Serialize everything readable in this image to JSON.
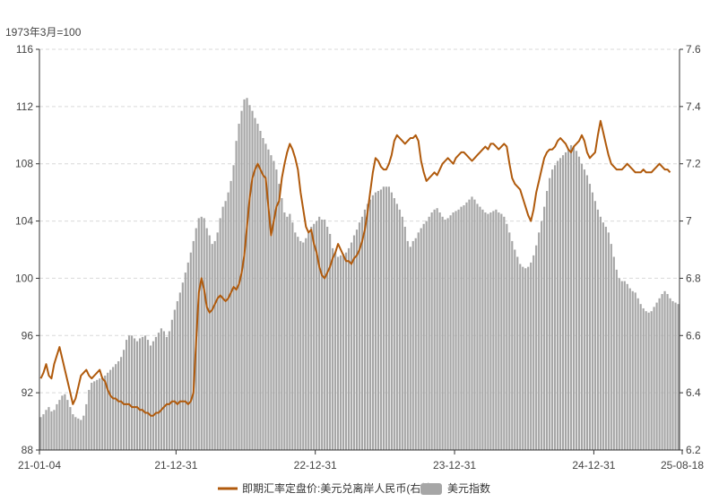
{
  "chart_data": {
    "type": "bar+line",
    "left_axis_unit": "1973年3月=100",
    "left_axis": {
      "min": 88,
      "max": 116,
      "ticks": [
        88,
        92,
        96,
        100,
        104,
        108,
        112,
        116
      ]
    },
    "right_axis": {
      "min": 6.2,
      "max": 7.6,
      "ticks": [
        6.2,
        6.4,
        6.6,
        6.8,
        7,
        7.2,
        7.4,
        7.6
      ]
    },
    "x_tick_labels": [
      "21-01-04",
      "21-12-31",
      "22-12-31",
      "23-12-31",
      "24-12-31",
      "25-08-18"
    ],
    "x_ticks": [
      0,
      51,
      103,
      155,
      207,
      240
    ],
    "grid": true,
    "legend_position": "bottom-center",
    "series": [
      {
        "name": "即期汇率定盘价:美元兑离岸人民币(右轴)",
        "type": "line",
        "axis": "right",
        "color": "#b05a0c",
        "values": [
          6.45,
          6.47,
          6.5,
          6.46,
          6.45,
          6.5,
          6.53,
          6.56,
          6.52,
          6.48,
          6.44,
          6.4,
          6.36,
          6.38,
          6.42,
          6.46,
          6.47,
          6.48,
          6.46,
          6.45,
          6.46,
          6.47,
          6.48,
          6.45,
          6.44,
          6.41,
          6.39,
          6.38,
          6.38,
          6.37,
          6.37,
          6.36,
          6.36,
          6.36,
          6.35,
          6.35,
          6.35,
          6.34,
          6.34,
          6.33,
          6.33,
          6.32,
          6.32,
          6.33,
          6.33,
          6.34,
          6.35,
          6.36,
          6.36,
          6.37,
          6.37,
          6.36,
          6.37,
          6.37,
          6.37,
          6.36,
          6.37,
          6.4,
          6.58,
          6.75,
          6.8,
          6.76,
          6.7,
          6.68,
          6.69,
          6.71,
          6.73,
          6.74,
          6.73,
          6.72,
          6.73,
          6.75,
          6.77,
          6.76,
          6.78,
          6.82,
          6.88,
          6.98,
          7.08,
          7.15,
          7.18,
          7.2,
          7.18,
          7.16,
          7.15,
          7.05,
          6.95,
          7.0,
          7.05,
          7.07,
          7.15,
          7.2,
          7.24,
          7.27,
          7.25,
          7.22,
          7.18,
          7.1,
          7.04,
          6.98,
          6.96,
          6.97,
          6.92,
          6.89,
          6.84,
          6.81,
          6.8,
          6.82,
          6.84,
          6.87,
          6.89,
          6.92,
          6.9,
          6.88,
          6.86,
          6.86,
          6.85,
          6.87,
          6.88,
          6.9,
          6.93,
          6.97,
          7.03,
          7.1,
          7.17,
          7.22,
          7.21,
          7.19,
          7.18,
          7.18,
          7.2,
          7.23,
          7.28,
          7.3,
          7.29,
          7.28,
          7.27,
          7.28,
          7.29,
          7.29,
          7.3,
          7.28,
          7.21,
          7.17,
          7.14,
          7.15,
          7.16,
          7.17,
          7.16,
          7.18,
          7.2,
          7.21,
          7.22,
          7.21,
          7.2,
          7.22,
          7.23,
          7.24,
          7.24,
          7.23,
          7.22,
          7.21,
          7.22,
          7.23,
          7.24,
          7.25,
          7.26,
          7.25,
          7.27,
          7.27,
          7.26,
          7.25,
          7.26,
          7.27,
          7.26,
          7.2,
          7.15,
          7.13,
          7.12,
          7.11,
          7.08,
          7.05,
          7.02,
          7.0,
          7.04,
          7.1,
          7.14,
          7.18,
          7.22,
          7.24,
          7.25,
          7.25,
          7.26,
          7.28,
          7.29,
          7.28,
          7.27,
          7.25,
          7.24,
          7.26,
          7.27,
          7.28,
          7.3,
          7.28,
          7.24,
          7.22,
          7.23,
          7.24,
          7.3,
          7.35,
          7.31,
          7.27,
          7.23,
          7.2,
          7.19,
          7.18,
          7.18,
          7.18,
          7.19,
          7.2,
          7.19,
          7.18,
          7.17,
          7.17,
          7.17,
          7.18,
          7.17,
          7.17,
          7.17,
          7.18,
          7.19,
          7.2,
          7.19,
          7.18,
          7.18,
          7.17
        ]
      },
      {
        "name": "美元指数",
        "type": "bar",
        "axis": "left",
        "color": "#a6a6a6",
        "values": [
          90.3,
          90.5,
          90.8,
          91.0,
          90.7,
          90.8,
          91.2,
          91.5,
          91.8,
          91.9,
          91.5,
          91.0,
          90.5,
          90.3,
          90.2,
          90.1,
          90.4,
          91.2,
          92.2,
          92.7,
          92.8,
          92.9,
          93.0,
          93.1,
          93.2,
          93.4,
          93.6,
          93.8,
          94.0,
          94.2,
          94.5,
          95.0,
          95.7,
          96.0,
          96.0,
          95.8,
          95.6,
          95.8,
          95.9,
          96.0,
          95.7,
          95.3,
          95.6,
          95.9,
          96.2,
          96.5,
          96.3,
          95.9,
          96.3,
          97.1,
          97.8,
          98.4,
          99.0,
          99.7,
          100.4,
          101.1,
          101.8,
          102.6,
          103.5,
          104.2,
          104.3,
          104.2,
          103.5,
          103.0,
          102.4,
          102.6,
          103.2,
          104.2,
          105.0,
          105.4,
          106.0,
          106.8,
          107.9,
          109.6,
          110.8,
          111.7,
          112.5,
          112.6,
          112.1,
          111.7,
          111.2,
          110.8,
          110.3,
          109.8,
          109.4,
          109.0,
          108.6,
          108.2,
          107.6,
          106.6,
          105.6,
          104.6,
          104.3,
          104.5,
          103.9,
          103.2,
          102.9,
          102.6,
          102.5,
          102.8,
          103.2,
          103.6,
          103.8,
          104.0,
          104.3,
          104.1,
          104.1,
          103.6,
          103.1,
          102.1,
          101.8,
          101.5,
          101.6,
          101.7,
          101.8,
          102.1,
          102.5,
          103.0,
          103.4,
          103.9,
          104.3,
          104.8,
          105.2,
          105.5,
          105.8,
          106.0,
          106.1,
          106.2,
          106.4,
          106.4,
          106.4,
          106.0,
          105.6,
          105.2,
          104.8,
          104.3,
          103.6,
          102.6,
          102.2,
          102.6,
          102.8,
          103.2,
          103.5,
          103.8,
          104.0,
          104.3,
          104.6,
          104.8,
          104.9,
          104.6,
          104.3,
          104.1,
          104.2,
          104.4,
          104.6,
          104.7,
          104.8,
          105.0,
          105.1,
          105.3,
          105.5,
          105.7,
          105.5,
          105.2,
          105.0,
          104.8,
          104.6,
          104.5,
          104.6,
          104.7,
          104.8,
          104.6,
          104.5,
          104.3,
          103.8,
          103.2,
          102.6,
          102.0,
          101.5,
          101.0,
          100.8,
          100.7,
          100.8,
          101.1,
          101.6,
          102.3,
          103.2,
          104.0,
          105.0,
          106.1,
          107.0,
          107.6,
          107.9,
          108.2,
          108.4,
          108.6,
          108.8,
          109.0,
          109.3,
          109.2,
          108.9,
          108.5,
          108.0,
          107.6,
          107.2,
          106.6,
          106.0,
          105.4,
          104.8,
          104.3,
          103.9,
          103.6,
          103.2,
          102.4,
          101.5,
          100.6,
          100.0,
          99.8,
          99.8,
          99.6,
          99.3,
          99.1,
          99.0,
          98.6,
          98.2,
          97.9,
          97.7,
          97.6,
          97.7,
          98.0,
          98.3,
          98.6,
          98.9,
          99.1,
          98.9,
          98.6,
          98.4,
          98.3,
          98.2
        ]
      }
    ]
  }
}
